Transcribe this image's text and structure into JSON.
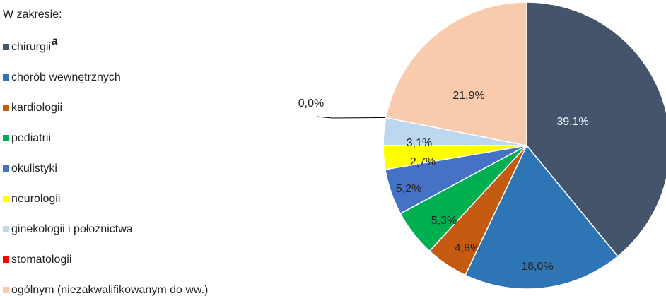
{
  "chart_data": {
    "type": "pie",
    "legend_title": "W zakresie:",
    "categories": [
      "chirurgii",
      "chorób wewnętrznych",
      "kardiologii",
      "pediatrii",
      "okulistyki",
      "neurologii",
      "ginekologii i położnictwa",
      "stomatologii",
      "ogólnym (niezakwalifikowanym do ww.)"
    ],
    "name_marks": [
      "a",
      null,
      null,
      null,
      null,
      null,
      null,
      null,
      null
    ],
    "values": [
      39.1,
      18.0,
      4.8,
      5.3,
      5.2,
      2.7,
      3.1,
      0.0,
      21.9
    ],
    "value_labels": [
      "39,1%",
      "18,0%",
      "4,8%",
      "5,3%",
      "5,2%",
      "2,7%",
      "3,1%",
      "0,0%",
      "21,9%"
    ],
    "colors": [
      "#44546a",
      "#2e75b6",
      "#c55a11",
      "#00b050",
      "#4472c4",
      "#ffff00",
      "#bdd7ee",
      "#ff0000",
      "#f8cbad"
    ],
    "legend": "left"
  }
}
